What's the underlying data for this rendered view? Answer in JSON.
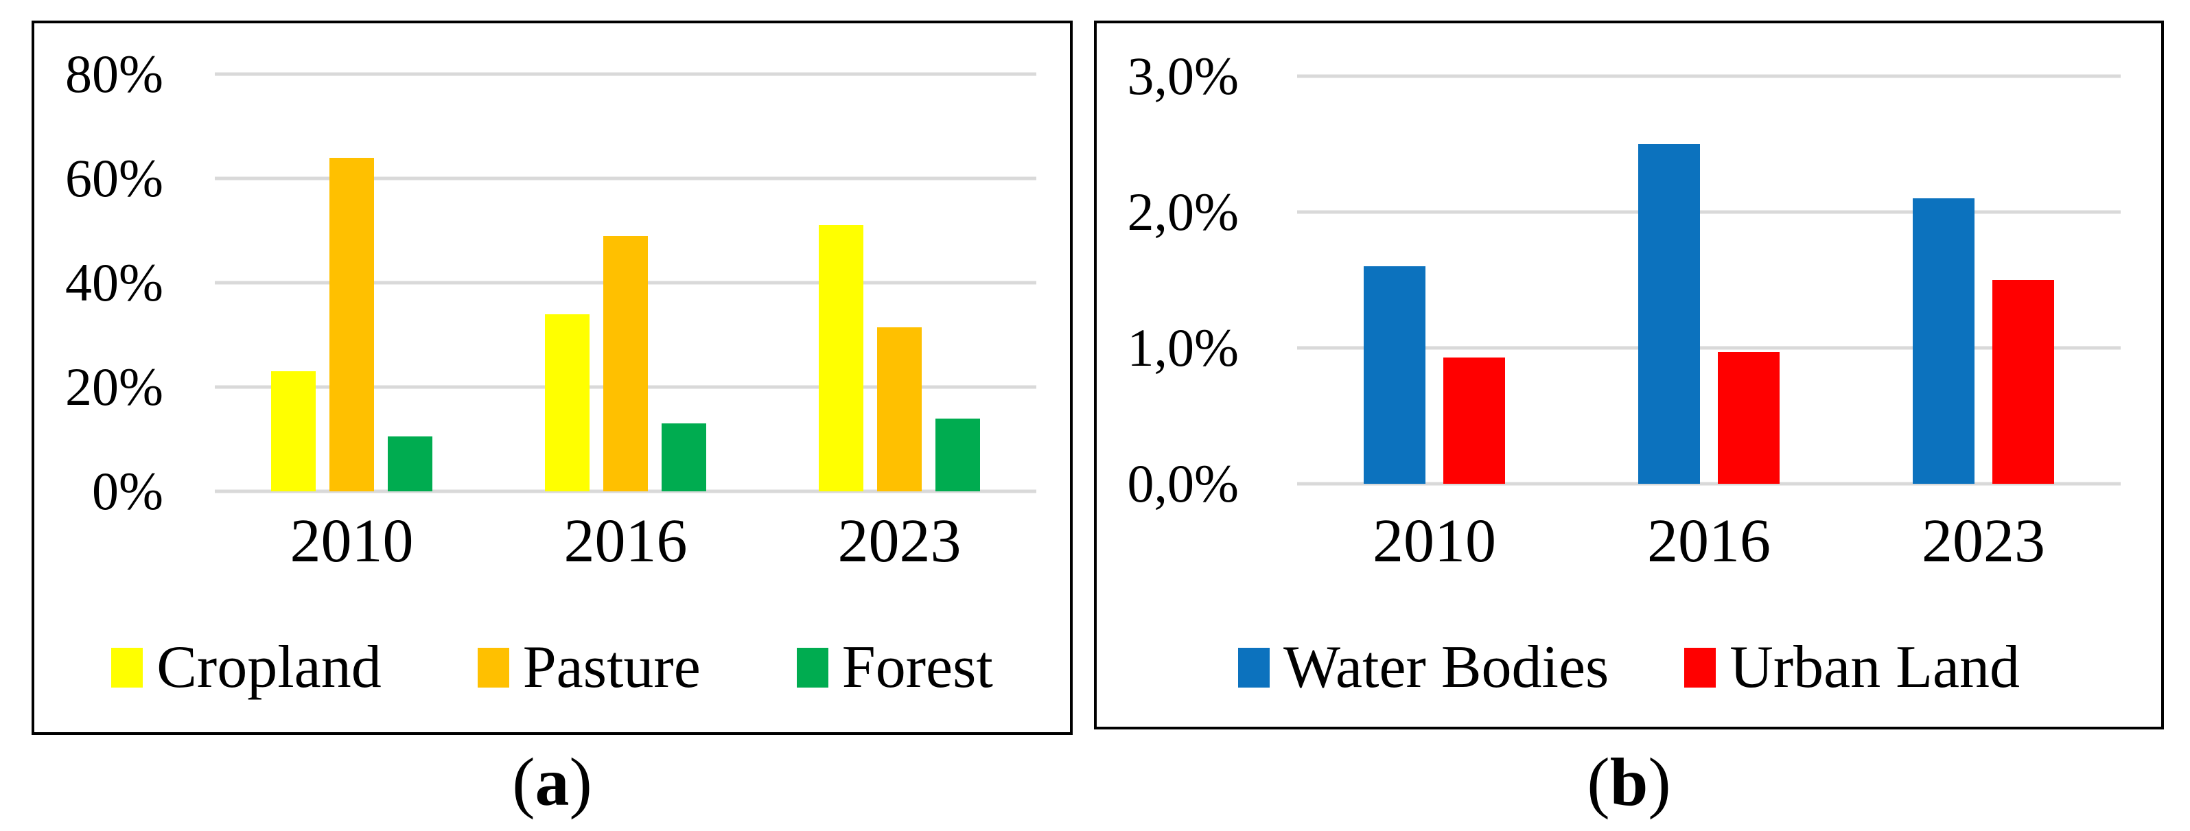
{
  "figure": {
    "caption_a": {
      "open": "(",
      "letter": "a",
      "close": ")"
    },
    "caption_b": {
      "open": "(",
      "letter": "b",
      "close": ")"
    },
    "colors": {
      "cropland": "#FFFF00",
      "pasture": "#FFC000",
      "forest": "#00AC50",
      "water_bodies": "#0C72BE",
      "urban_land": "#FF0000",
      "gridline": "#D9D9D9",
      "panel_border": "#000000"
    }
  },
  "chart_data": [
    {
      "type": "bar",
      "caption": {
        "open": "(",
        "letter": "a",
        "close": ")"
      },
      "categories": [
        "2010",
        "2016",
        "2023"
      ],
      "series": [
        {
          "name": "Cropland",
          "color": "#FFFF00",
          "values": [
            23,
            34,
            51
          ]
        },
        {
          "name": "Pasture",
          "color": "#FFC000",
          "values": [
            64,
            49,
            31.5
          ]
        },
        {
          "name": "Forest",
          "color": "#00AC50",
          "values": [
            10.5,
            13,
            14
          ]
        }
      ],
      "title": "",
      "xlabel": "",
      "ylabel": "",
      "ylim": [
        0,
        80
      ],
      "ytick_labels_top_to_bottom": [
        "80%",
        "60%",
        "40%",
        "20%",
        "0%"
      ],
      "grid": true,
      "legend_position": "bottom"
    },
    {
      "type": "bar",
      "caption": {
        "open": "(",
        "letter": "b",
        "close": ")"
      },
      "categories": [
        "2010",
        "2016",
        "2023"
      ],
      "series": [
        {
          "name": "Water Bodies",
          "color": "#0C72BE",
          "values": [
            1.6,
            2.5,
            2.1
          ]
        },
        {
          "name": "Urban Land",
          "color": "#FF0000",
          "values": [
            0.93,
            0.97,
            1.5
          ]
        }
      ],
      "title": "",
      "xlabel": "",
      "ylabel": "",
      "ylim": [
        0,
        3
      ],
      "ytick_labels_top_to_bottom": [
        "3,0%",
        "2,0%",
        "1,0%",
        "0,0%"
      ],
      "grid": true,
      "legend_position": "bottom"
    }
  ]
}
